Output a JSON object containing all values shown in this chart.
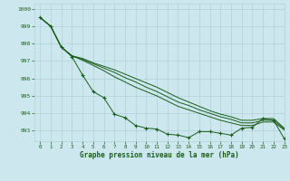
{
  "title": "Graphe pression niveau de la mer (hPa)",
  "bg_color": "#cce8ee",
  "grid_color": "#b0d0d8",
  "line_color": "#1a5c1a",
  "xlim": [
    -0.5,
    23
  ],
  "ylim": [
    992.4,
    1000.3
  ],
  "yticks": [
    993,
    994,
    995,
    996,
    997,
    998,
    999,
    1000
  ],
  "xticks": [
    0,
    1,
    2,
    3,
    4,
    5,
    6,
    7,
    8,
    9,
    10,
    11,
    12,
    13,
    14,
    15,
    16,
    17,
    18,
    19,
    20,
    21,
    22,
    23
  ],
  "line1": [
    999.5,
    999.0,
    997.8,
    997.25,
    996.2,
    995.25,
    994.9,
    993.95,
    993.75,
    993.3,
    993.15,
    993.1,
    992.8,
    992.75,
    992.6,
    992.95,
    992.95,
    992.85,
    992.75,
    993.15,
    993.2,
    993.7,
    993.6,
    992.55
  ],
  "line2": [
    999.5,
    999.0,
    997.8,
    997.3,
    997.05,
    996.75,
    996.45,
    996.1,
    995.8,
    995.5,
    995.25,
    995.0,
    994.7,
    994.4,
    994.2,
    994.0,
    993.8,
    993.6,
    993.45,
    993.3,
    993.3,
    993.5,
    993.5,
    993.05
  ],
  "line3": [
    999.5,
    999.0,
    997.8,
    997.3,
    997.1,
    996.85,
    996.6,
    996.35,
    996.05,
    995.8,
    995.5,
    995.25,
    994.95,
    994.65,
    994.45,
    994.2,
    994.0,
    993.8,
    993.65,
    993.45,
    993.45,
    993.6,
    993.6,
    993.1
  ],
  "line4": [
    999.5,
    999.0,
    997.8,
    997.3,
    997.15,
    996.9,
    996.7,
    996.5,
    996.25,
    996.0,
    995.75,
    995.5,
    995.2,
    994.9,
    994.65,
    994.4,
    994.15,
    993.95,
    993.8,
    993.6,
    993.6,
    993.7,
    993.7,
    993.15
  ]
}
